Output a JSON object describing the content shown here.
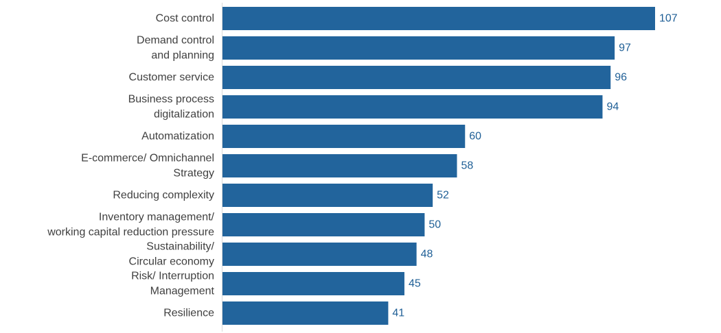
{
  "chart_data": {
    "type": "bar",
    "orientation": "horizontal",
    "title": "",
    "xlabel": "",
    "ylabel": "",
    "xlim": [
      0,
      107
    ],
    "grid": false,
    "legend": "none",
    "bar_color": "#22649c",
    "label_color": "#1f5f96",
    "categories": [
      [
        "Cost control"
      ],
      [
        "Demand control",
        "and planning"
      ],
      [
        "Customer service"
      ],
      [
        "Business process",
        "digitalization"
      ],
      [
        "Automatization"
      ],
      [
        "E-commerce/ Omnichannel",
        "Strategy"
      ],
      [
        "Reducing complexity"
      ],
      [
        "Inventory management/",
        "working capital reduction pressure"
      ],
      [
        "Sustainability/",
        "Circular economy"
      ],
      [
        "Risk/ Interruption",
        "Management"
      ],
      [
        "Resilience"
      ]
    ],
    "values": [
      107,
      97,
      96,
      94,
      60,
      58,
      52,
      50,
      48,
      45,
      41
    ]
  }
}
